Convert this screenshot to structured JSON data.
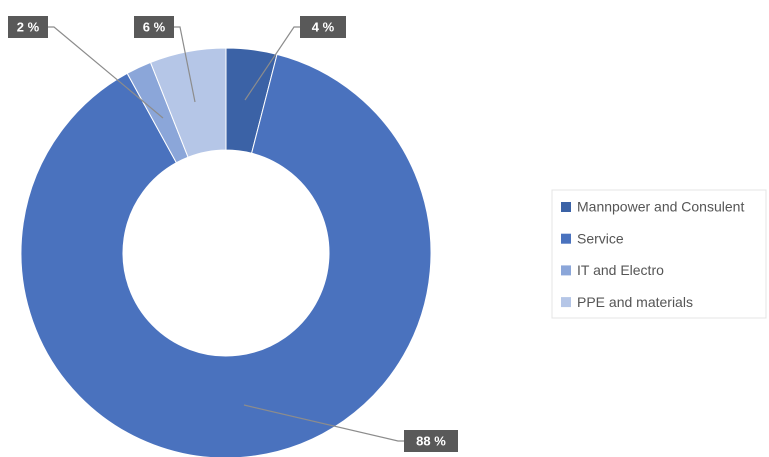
{
  "chart_data": {
    "type": "donut",
    "categories": [
      "Mannpower and Consulent",
      "Service",
      "IT and Electro",
      "PPE and materials"
    ],
    "values": [
      4,
      88,
      2,
      6
    ],
    "value_labels": [
      "4 %",
      "88 %",
      "2 %",
      "6 %"
    ],
    "colors": [
      "#3b62a6",
      "#4a72be",
      "#8ba6d9",
      "#b5c6e7"
    ],
    "legend": "right"
  }
}
